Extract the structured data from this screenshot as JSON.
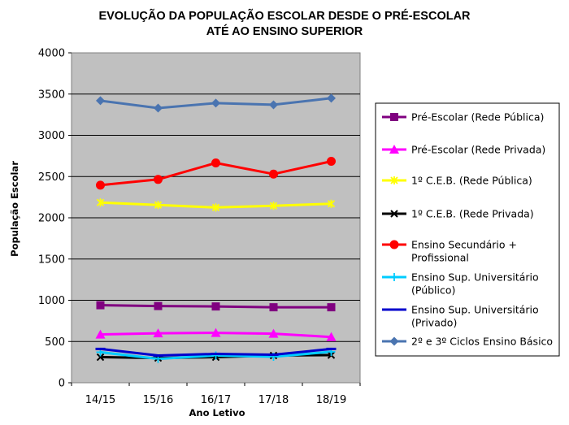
{
  "chart_data": {
    "type": "line",
    "title": [
      "EVOLUÇÃO DA POPULAÇÃO ESCOLAR DESDE O PRÉ-ESCOLAR",
      "ATÉ AO ENSINO SUPERIOR"
    ],
    "xlabel": "Ano Letivo",
    "ylabel": "População Escolar",
    "ylim": [
      0,
      4000
    ],
    "ytick_step": 500,
    "yticks": [
      "0",
      "500",
      "1000",
      "1500",
      "2000",
      "2500",
      "3000",
      "3500",
      "4000"
    ],
    "grid": true,
    "legend_position": "right",
    "categories": [
      "14/15",
      "15/16",
      "16/17",
      "17/18",
      "18/19"
    ],
    "series": [
      {
        "name": [
          "Pré-Escolar (Rede Pública)"
        ],
        "color": "#800080",
        "marker": "square",
        "values": [
          940,
          930,
          925,
          915,
          915
        ]
      },
      {
        "name": [
          "Pré-Escolar (Rede Privada)"
        ],
        "color": "#ff00ff",
        "marker": "triangle",
        "values": [
          585,
          600,
          605,
          595,
          555
        ]
      },
      {
        "name": [
          "1º C.E.B. (Rede Pública)"
        ],
        "color": "#ffff00",
        "marker": "star",
        "values": [
          2185,
          2155,
          2125,
          2145,
          2170
        ]
      },
      {
        "name": [
          "1º C.E.B.  (Rede Privada)"
        ],
        "color": "#000000",
        "marker": "x",
        "values": [
          310,
          300,
          310,
          330,
          335
        ]
      },
      {
        "name": [
          "Ensino Secundário +",
          "Profissional"
        ],
        "color": "#ff0000",
        "marker": "circle",
        "values": [
          2395,
          2465,
          2665,
          2530,
          2685
        ]
      },
      {
        "name": [
          "Ensino Sup. Universitário",
          "(Público)"
        ],
        "color": "#00ccff",
        "marker": "plus",
        "values": [
          370,
          290,
          330,
          315,
          375
        ]
      },
      {
        "name": [
          "Ensino Sup. Universitário",
          "(Privado)"
        ],
        "color": "#0000cc",
        "marker": "dash",
        "values": [
          410,
          330,
          350,
          340,
          410
        ]
      },
      {
        "name": [
          "2º e 3º Ciclos Ensino Básico"
        ],
        "color": "#4a74b0",
        "marker": "diamond",
        "values": [
          3420,
          3330,
          3390,
          3370,
          3450
        ]
      }
    ]
  }
}
